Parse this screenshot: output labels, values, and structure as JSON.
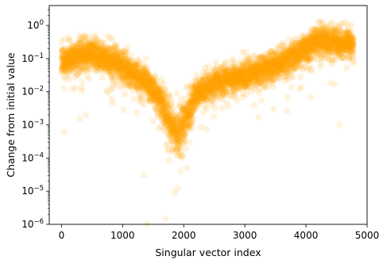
{
  "chart_data": {
    "type": "scatter",
    "title": "",
    "xlabel": "Singular vector index",
    "ylabel": "Change from initial value",
    "xlim": [
      -200,
      5000
    ],
    "ylim_log10": [
      -6,
      0.6
    ],
    "yscale": "log",
    "grid": false,
    "marker_color": "#ffa500",
    "marker_alpha": 0.13,
    "x_ticks": [
      {
        "value": 0,
        "label": "0"
      },
      {
        "value": 1000,
        "label": "1000"
      },
      {
        "value": 2000,
        "label": "2000"
      },
      {
        "value": 3000,
        "label": "3000"
      },
      {
        "value": 4000,
        "label": "4000"
      },
      {
        "value": 5000,
        "label": "5000"
      }
    ],
    "y_ticks": [
      {
        "exp": 0,
        "base": "10",
        "sup": "0"
      },
      {
        "exp": -1,
        "base": "10",
        "sup": "−1"
      },
      {
        "exp": -2,
        "base": "10",
        "sup": "−2"
      },
      {
        "exp": -3,
        "base": "10",
        "sup": "−3"
      },
      {
        "exp": -4,
        "base": "10",
        "sup": "−4"
      },
      {
        "exp": -5,
        "base": "10",
        "sup": "−5"
      },
      {
        "exp": -6,
        "base": "10",
        "sup": "−6"
      }
    ],
    "trend": {
      "x": [
        0,
        200,
        500,
        800,
        1100,
        1400,
        1600,
        1800,
        1900,
        2000,
        2200,
        2500,
        3000,
        3500,
        4000,
        4200,
        4500,
        4780
      ],
      "median_log10": [
        -1.1,
        -0.95,
        -0.85,
        -1.05,
        -1.35,
        -1.7,
        -2.2,
        -3.0,
        -3.3,
        -2.9,
        -2.1,
        -1.75,
        -1.5,
        -1.2,
        -0.75,
        -0.45,
        -0.5,
        -0.55
      ]
    },
    "n_points": 4800,
    "outliers": [
      {
        "x": 1700,
        "y": 1.5e-06
      },
      {
        "x": 1850,
        "y": 9e-06
      },
      {
        "x": 1900,
        "y": 1.2e-05
      },
      {
        "x": 1350,
        "y": 3e-05
      },
      {
        "x": 1400,
        "y": 1e-06
      },
      {
        "x": 2050,
        "y": 5e-05
      },
      {
        "x": 1900,
        "y": 0.0002
      },
      {
        "x": 1950,
        "y": 4e-05
      },
      {
        "x": 50,
        "y": 0.0006
      },
      {
        "x": 300,
        "y": 0.0015
      },
      {
        "x": 400,
        "y": 0.002
      },
      {
        "x": 4550,
        "y": 0.001
      }
    ]
  }
}
